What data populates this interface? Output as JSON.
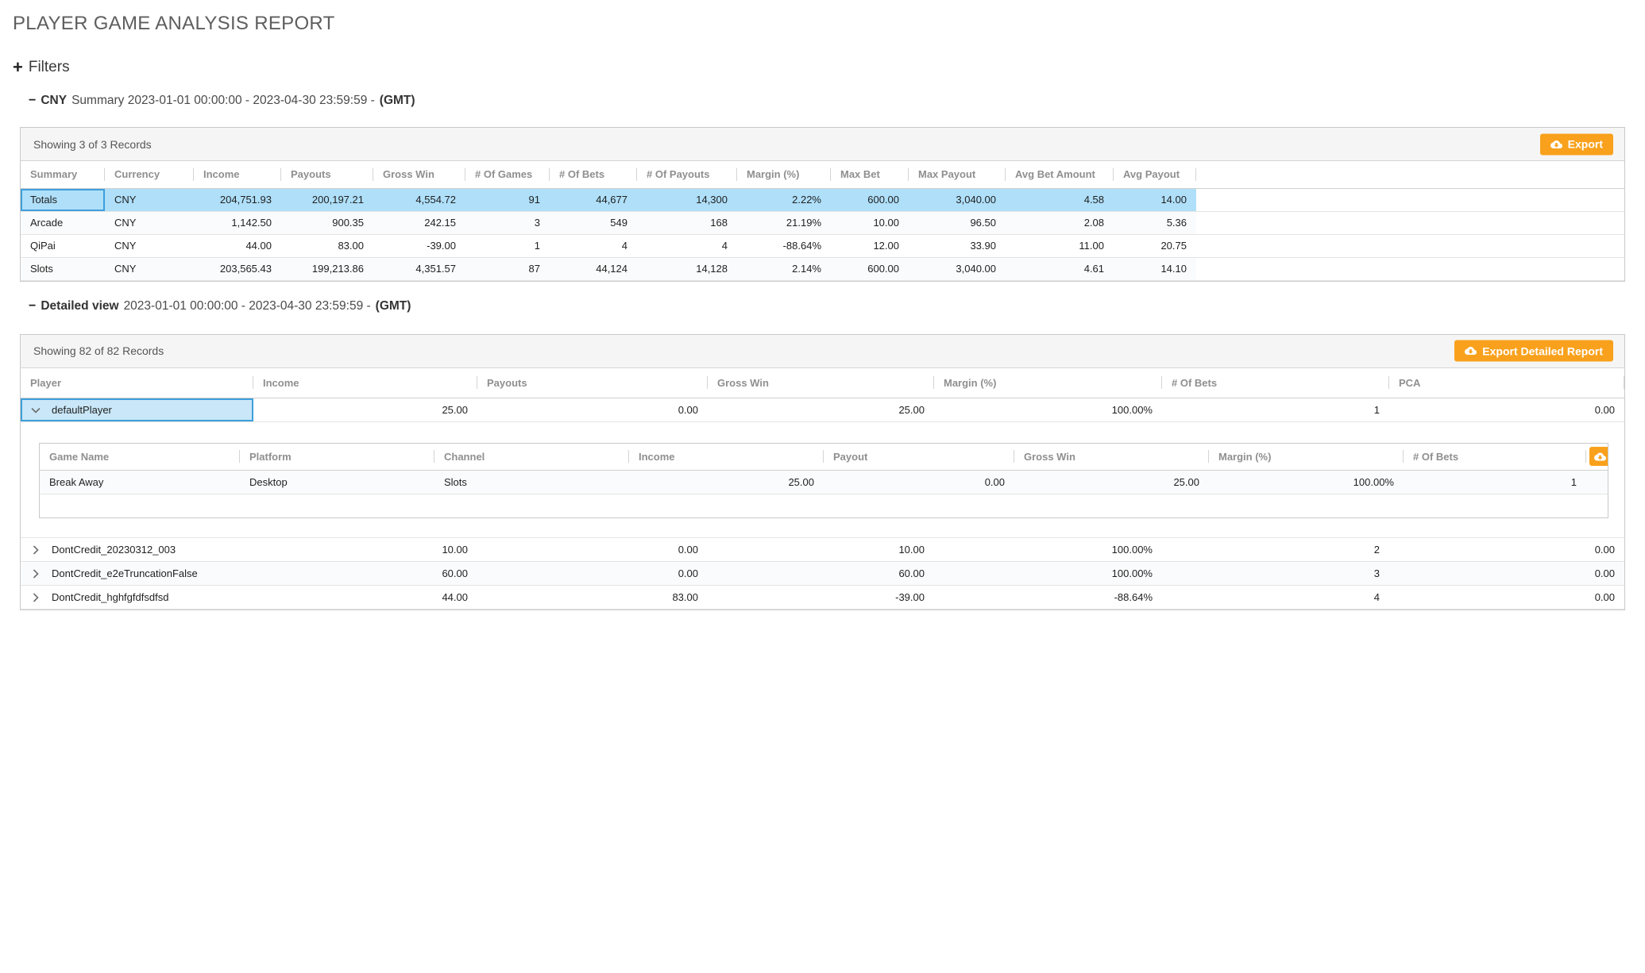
{
  "page": {
    "title": "PLAYER GAME ANALYSIS REPORT"
  },
  "filters": {
    "label": "Filters"
  },
  "colors": {
    "accent": "#F9A11C",
    "row_highlight": "#AFDFF9",
    "selected_cell_bg": "#C9E7F8",
    "selection_border": "#3F9FDB"
  },
  "summary_section": {
    "title_bold": "CNY",
    "title_rest": "Summary 2023-01-01 00:00:00 - 2023-04-30 23:59:59 -",
    "title_suffix": "(GMT)",
    "showing": "Showing 3 of 3 Records",
    "export_label": "Export",
    "columns": [
      "Summary",
      "Currency",
      "Income",
      "Payouts",
      "Gross Win",
      "# Of Games",
      "# Of Bets",
      "# Of Payouts",
      "Margin (%)",
      "Max Bet",
      "Max Payout",
      "Avg Bet Amount",
      "Avg Payout"
    ],
    "rows": [
      {
        "highlighted": true,
        "cells": [
          "Totals",
          "CNY",
          "204,751.93",
          "200,197.21",
          "4,554.72",
          "91",
          "44,677",
          "14,300",
          "2.22%",
          "600.00",
          "3,040.00",
          "4.58",
          "14.00"
        ]
      },
      {
        "cells": [
          "Arcade",
          "CNY",
          "1,142.50",
          "900.35",
          "242.15",
          "3",
          "549",
          "168",
          "21.19%",
          "10.00",
          "96.50",
          "2.08",
          "5.36"
        ]
      },
      {
        "cells": [
          "QiPai",
          "CNY",
          "44.00",
          "83.00",
          "-39.00",
          "1",
          "4",
          "4",
          "-88.64%",
          "12.00",
          "33.90",
          "11.00",
          "20.75"
        ]
      },
      {
        "cells": [
          "Slots",
          "CNY",
          "203,565.43",
          "199,213.86",
          "4,351.57",
          "87",
          "44,124",
          "14,128",
          "2.14%",
          "600.00",
          "3,040.00",
          "4.61",
          "14.10"
        ]
      }
    ]
  },
  "detailed_section": {
    "title_bold": "Detailed view",
    "title_rest": "2023-01-01 00:00:00 - 2023-04-30 23:59:59 -",
    "title_suffix": "(GMT)",
    "showing": "Showing 82 of 82 Records",
    "export_label": "Export Detailed Report",
    "columns": [
      "Player",
      "Income",
      "Payouts",
      "Gross Win",
      "Margin (%)",
      "# Of Bets",
      "PCA"
    ],
    "rows": [
      {
        "player": "defaultPlayer",
        "expanded": true,
        "selected": true,
        "values": [
          "25.00",
          "0.00",
          "25.00",
          "100.00%",
          "1",
          "0.00"
        ]
      },
      {
        "player": "DontCredit_20230312_003",
        "values": [
          "10.00",
          "0.00",
          "10.00",
          "100.00%",
          "2",
          "0.00"
        ]
      },
      {
        "player": "DontCredit_e2eTruncationFalse",
        "values": [
          "60.00",
          "0.00",
          "60.00",
          "100.00%",
          "3",
          "0.00"
        ]
      },
      {
        "player": "DontCredit_hghfgfdfsdfsd",
        "values": [
          "44.00",
          "83.00",
          "-39.00",
          "-88.64%",
          "4",
          "0.00"
        ]
      }
    ],
    "nested": {
      "columns": [
        "Game Name",
        "Platform",
        "Channel",
        "Income",
        "Payout",
        "Gross Win",
        "Margin (%)",
        "# Of Bets"
      ],
      "rows": [
        [
          "Break Away",
          "Desktop",
          "Slots",
          "25.00",
          "0.00",
          "25.00",
          "100.00%",
          "1"
        ]
      ]
    }
  }
}
